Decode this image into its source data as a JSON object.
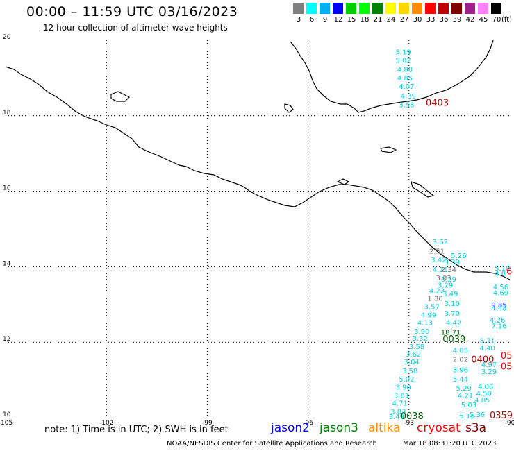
{
  "header": {
    "title": "00:00 – 11:59 UTC 03/16/2023",
    "subtitle": "12 hour collection of altimeter wave heights"
  },
  "legend": {
    "unit": "(ft)",
    "items": [
      {
        "label": "3",
        "color": "#7f7f7f"
      },
      {
        "label": "6",
        "color": "#00ffff"
      },
      {
        "label": "9",
        "color": "#00b0f0"
      },
      {
        "label": "12",
        "color": "#0000ff"
      },
      {
        "label": "15",
        "color": "#00cc00"
      },
      {
        "label": "18",
        "color": "#00ff00"
      },
      {
        "label": "21",
        "color": "#008000"
      },
      {
        "label": "24",
        "color": "#ffff00"
      },
      {
        "label": "27",
        "color": "#ffd700"
      },
      {
        "label": "30",
        "color": "#ff8c00"
      },
      {
        "label": "33",
        "color": "#ff0000"
      },
      {
        "label": "36",
        "color": "#c00000"
      },
      {
        "label": "39",
        "color": "#800000"
      },
      {
        "label": "42",
        "color": "#a0208a"
      },
      {
        "label": "45",
        "color": "#ff80ff"
      },
      {
        "label": "70",
        "color": "#000000"
      }
    ]
  },
  "map": {
    "lat_labels": [
      "20",
      "18",
      "16",
      "14",
      "12",
      "10"
    ],
    "lon_labels": [
      "-105",
      "-102",
      "-99",
      "-96",
      "-93",
      "-90"
    ],
    "observations": [
      {
        "t": "5.19",
        "c": "#00d0e0",
        "lon": -93.4,
        "lat": 19.62
      },
      {
        "t": "5.02",
        "c": "#00d0e0",
        "lon": -93.4,
        "lat": 19.4
      },
      {
        "t": "4.88",
        "c": "#00d0e0",
        "lon": -93.35,
        "lat": 19.16
      },
      {
        "t": "4.85",
        "c": "#00d0e0",
        "lon": -93.35,
        "lat": 18.93
      },
      {
        "t": "4.07",
        "c": "#00d0e0",
        "lon": -93.3,
        "lat": 18.71
      },
      {
        "t": "4.39",
        "c": "#00d0e0",
        "lon": -93.25,
        "lat": 18.46
      },
      {
        "t": "3.58",
        "c": "#00d0e0",
        "lon": -93.3,
        "lat": 18.23
      },
      {
        "t": "3.62",
        "c": "#00d0e0",
        "lon": -92.3,
        "lat": 14.6
      },
      {
        "t": "2.51",
        "c": "#707070",
        "lon": -92.4,
        "lat": 14.35
      },
      {
        "t": "5.26",
        "c": "#00d0e0",
        "lon": -91.75,
        "lat": 14.23
      },
      {
        "t": "3.42",
        "c": "#00d0e0",
        "lon": -92.35,
        "lat": 14.12
      },
      {
        "t": "3.39",
        "c": "#00d0e0",
        "lon": -91.95,
        "lat": 14.06
      },
      {
        "t": "4.21",
        "c": "#00d0e0",
        "lon": -92.3,
        "lat": 13.86
      },
      {
        "t": "2.34",
        "c": "#707070",
        "lon": -92.05,
        "lat": 13.86
      },
      {
        "t": "3.03",
        "c": "#707070",
        "lon": -92.2,
        "lat": 13.64
      },
      {
        "t": "3.29",
        "c": "#00d0e0",
        "lon": -92.05,
        "lat": 13.6
      },
      {
        "t": "3.29",
        "c": "#00d0e0",
        "lon": -92.15,
        "lat": 13.45
      },
      {
        "t": "4.22",
        "c": "#00d0e0",
        "lon": -92.4,
        "lat": 13.3
      },
      {
        "t": "3.49",
        "c": "#00d0e0",
        "lon": -92.0,
        "lat": 13.22
      },
      {
        "t": "1.36",
        "c": "#707070",
        "lon": -92.45,
        "lat": 13.1
      },
      {
        "t": "3.10",
        "c": "#00d0e0",
        "lon": -91.95,
        "lat": 12.96
      },
      {
        "t": "3.57",
        "c": "#00d0e0",
        "lon": -92.55,
        "lat": 12.88
      },
      {
        "t": "3.70",
        "c": "#00d0e0",
        "lon": -91.95,
        "lat": 12.7
      },
      {
        "t": "4.99",
        "c": "#00d0e0",
        "lon": -92.65,
        "lat": 12.66
      },
      {
        "t": "4.13",
        "c": "#00d0e0",
        "lon": -92.75,
        "lat": 12.45
      },
      {
        "t": "4.42",
        "c": "#00d0e0",
        "lon": -91.9,
        "lat": 12.45
      },
      {
        "t": "3.90",
        "c": "#00d0e0",
        "lon": -92.85,
        "lat": 12.22
      },
      {
        "t": "18.71",
        "c": "#006000",
        "lon": -92.05,
        "lat": 12.2
      },
      {
        "t": "3.32",
        "c": "#00d0e0",
        "lon": -92.9,
        "lat": 12.04
      },
      {
        "t": "4.85",
        "c": "#00d0e0",
        "lon": -91.7,
        "lat": 11.72
      },
      {
        "t": "3.58",
        "c": "#00d0e0",
        "lon": -93.0,
        "lat": 11.82
      },
      {
        "t": "3.62",
        "c": "#00d0e0",
        "lon": -93.1,
        "lat": 11.62
      },
      {
        "t": "3.04",
        "c": "#00d0e0",
        "lon": -93.15,
        "lat": 11.42
      },
      {
        "t": "2.02",
        "c": "#707070",
        "lon": -91.7,
        "lat": 11.48
      },
      {
        "t": "3.58",
        "c": "#00d0e0",
        "lon": -93.2,
        "lat": 11.18
      },
      {
        "t": "3.96",
        "c": "#00d0e0",
        "lon": -91.7,
        "lat": 11.2
      },
      {
        "t": "5.02",
        "c": "#00d0e0",
        "lon": -93.3,
        "lat": 10.96
      },
      {
        "t": "5.44",
        "c": "#00d0e0",
        "lon": -91.7,
        "lat": 10.96
      },
      {
        "t": "3.90",
        "c": "#00d0e0",
        "lon": -93.4,
        "lat": 10.74
      },
      {
        "t": "5.29",
        "c": "#00d0e0",
        "lon": -91.6,
        "lat": 10.72
      },
      {
        "t": "3.61",
        "c": "#00d0e0",
        "lon": -93.45,
        "lat": 10.52
      },
      {
        "t": "4.21",
        "c": "#00d0e0",
        "lon": -91.55,
        "lat": 10.52
      },
      {
        "t": "4.71",
        "c": "#00d0e0",
        "lon": -93.5,
        "lat": 10.32
      },
      {
        "t": "5.03",
        "c": "#00d0e0",
        "lon": -91.45,
        "lat": 10.28
      },
      {
        "t": "3.83",
        "c": "#00d0e0",
        "lon": -93.55,
        "lat": 10.1
      },
      {
        "t": "5.36",
        "c": "#00d0e0",
        "lon": -91.2,
        "lat": 10.02
      },
      {
        "t": "5.15",
        "c": "#00d0e0",
        "lon": -91.5,
        "lat": 9.98
      },
      {
        "t": "3.49",
        "c": "#00d0e0",
        "lon": -93.6,
        "lat": 9.96
      },
      {
        "t": "5.18",
        "c": "#00d0e0",
        "lon": -90.45,
        "lat": 13.9
      },
      {
        "t": "4.8",
        "c": "#00d0e0",
        "lon": -90.45,
        "lat": 13.76
      },
      {
        "t": "4.56",
        "c": "#00d0e0",
        "lon": -90.5,
        "lat": 13.4
      },
      {
        "t": "4.69",
        "c": "#00d0e0",
        "lon": -90.5,
        "lat": 13.24
      },
      {
        "t": "9.85",
        "c": "#1030ff",
        "lon": -90.55,
        "lat": 12.92
      },
      {
        "t": "4.48",
        "c": "#00d0e0",
        "lon": -90.55,
        "lat": 12.84
      },
      {
        "t": "4.26",
        "c": "#00d0e0",
        "lon": -90.6,
        "lat": 12.52
      },
      {
        "t": "7.16",
        "c": "#00d0e0",
        "lon": -90.55,
        "lat": 12.36
      },
      {
        "t": "3.71",
        "c": "#00d0e0",
        "lon": -90.9,
        "lat": 11.98
      },
      {
        "t": "4.40",
        "c": "#00d0e0",
        "lon": -90.9,
        "lat": 11.78
      },
      {
        "t": "4.97",
        "c": "#00d0e0",
        "lon": -90.85,
        "lat": 11.34
      },
      {
        "t": "3.29",
        "c": "#00d0e0",
        "lon": -90.85,
        "lat": 11.16
      },
      {
        "t": "4.06",
        "c": "#00d0e0",
        "lon": -90.95,
        "lat": 10.76
      },
      {
        "t": "4.50",
        "c": "#00d0e0",
        "lon": -91.0,
        "lat": 10.58
      },
      {
        "t": "4.05",
        "c": "#00d0e0",
        "lon": -91.05,
        "lat": 10.4
      }
    ],
    "tags": [
      {
        "t": "0403",
        "c": "#b00000",
        "lon": -92.5,
        "lat": 18.26
      },
      {
        "t": "0039",
        "c": "#006000",
        "lon": -92.0,
        "lat": 12.0
      },
      {
        "t": "0400",
        "c": "#b00000",
        "lon": -91.15,
        "lat": 11.46
      },
      {
        "t": "05",
        "c": "#ff0000",
        "lon": -90.27,
        "lat": 11.56
      },
      {
        "t": "05",
        "c": "#ff0000",
        "lon": -90.27,
        "lat": 11.28
      },
      {
        "t": "6",
        "c": "#ff0000",
        "lon": -90.1,
        "lat": 13.8
      },
      {
        "t": "0038",
        "c": "#006000",
        "lon": -93.25,
        "lat": 9.96
      },
      {
        "t": "0359",
        "c": "#b00000",
        "lon": -90.6,
        "lat": 9.98
      }
    ]
  },
  "note": "note: 1) Time is in UTC; 2) SWH is in feet",
  "satellites": [
    {
      "name": "jason2",
      "color": "#0000ff"
    },
    {
      "name": "jason3",
      "color": "#008000"
    },
    {
      "name": "altika",
      "color": "#ff8c00"
    },
    {
      "name": "cryosat",
      "color": "#ff0000"
    },
    {
      "name": "s3a",
      "color": "#800000"
    }
  ],
  "footer": {
    "agency": "NOAA/NESDIS Center for Satellite Applications and Research",
    "timestamp": "Mar 18 08:31:20 UTC 2023"
  }
}
